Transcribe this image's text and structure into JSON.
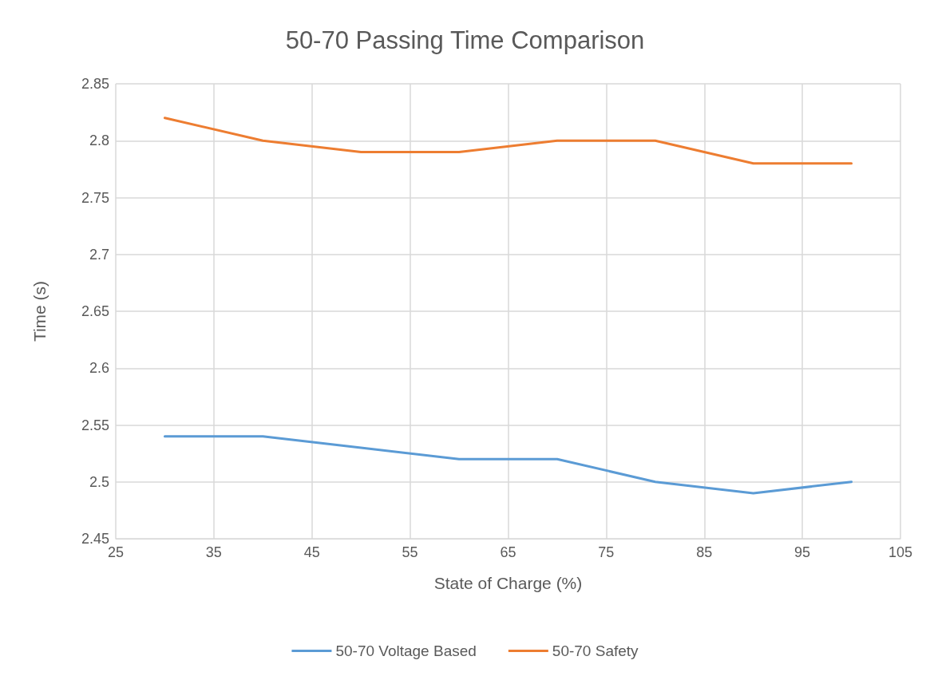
{
  "chart_data": {
    "type": "line",
    "title": "50-70 Passing Time Comparison",
    "xlabel": "State of Charge (%)",
    "ylabel": "Time (s)",
    "x": [
      30,
      40,
      50,
      60,
      70,
      80,
      90,
      100
    ],
    "series": [
      {
        "name": "50-70 Voltage Based",
        "color": "#5b9bd5",
        "values": [
          2.54,
          2.54,
          2.53,
          2.52,
          2.52,
          2.5,
          2.49,
          2.5
        ]
      },
      {
        "name": "50-70 Safety",
        "color": "#ed7d31",
        "values": [
          2.82,
          2.8,
          2.79,
          2.79,
          2.8,
          2.8,
          2.78,
          2.78
        ]
      }
    ],
    "xlim": [
      25,
      105
    ],
    "xticks": [
      25,
      35,
      45,
      55,
      65,
      75,
      85,
      95,
      105
    ],
    "ylim": [
      2.45,
      2.85
    ],
    "yticks": [
      2.45,
      2.5,
      2.55,
      2.6,
      2.65,
      2.7,
      2.75,
      2.8,
      2.85
    ],
    "grid": true,
    "legend": "bottom",
    "marker": "none",
    "line_style": "solid"
  }
}
